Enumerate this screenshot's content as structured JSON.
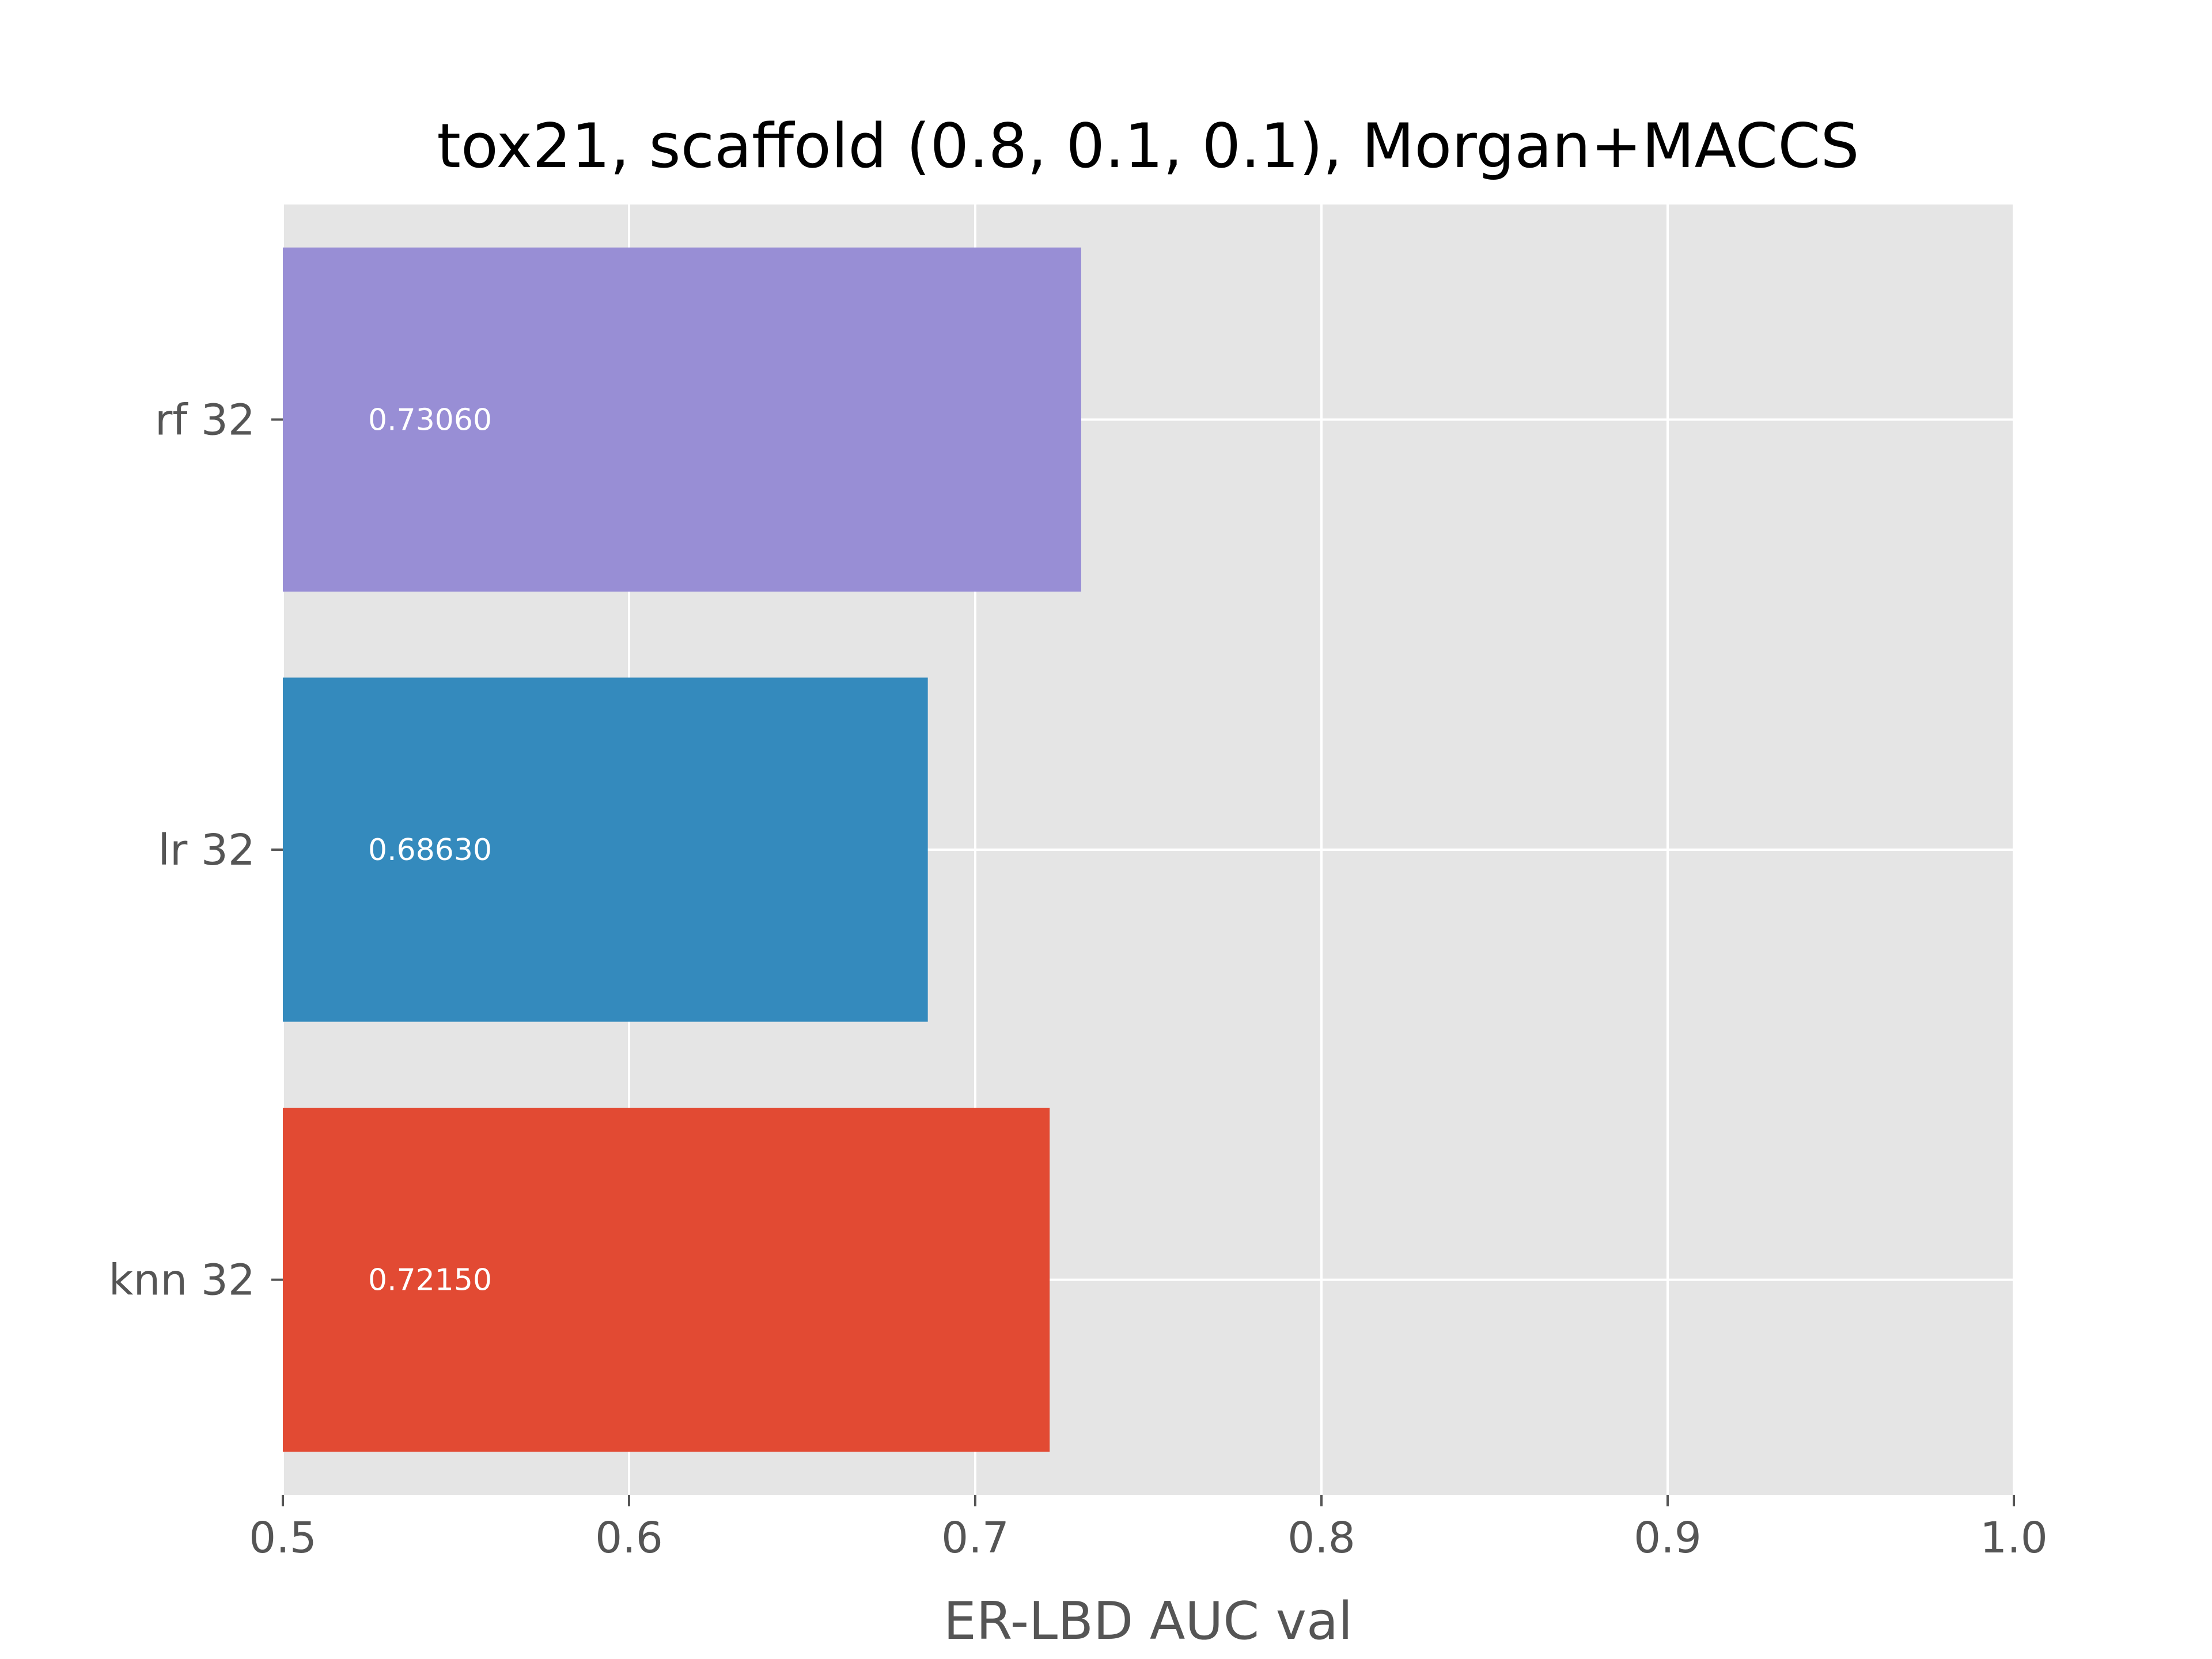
{
  "chart_data": {
    "type": "bar",
    "orientation": "horizontal",
    "title": "tox21, scaffold (0.8, 0.1, 0.1), Morgan+MACCS",
    "xlabel": "ER-LBD AUC val",
    "ylabel": "",
    "xlim": [
      0.5,
      1.0
    ],
    "xticks": [
      0.5,
      0.6,
      0.7,
      0.8,
      0.9,
      1.0
    ],
    "xtick_labels": [
      "0.5",
      "0.6",
      "0.7",
      "0.8",
      "0.9",
      "1.0"
    ],
    "categories": [
      "knn 32",
      "lr 32",
      "rf 32"
    ],
    "values": [
      0.7215,
      0.6863,
      0.7306
    ],
    "value_labels": [
      "0.72150",
      "0.68630",
      "0.73060"
    ],
    "colors": [
      "#E24A33",
      "#348ABD",
      "#988ED5"
    ],
    "grid": true,
    "background": "#E5E5E5",
    "legend": "none"
  }
}
